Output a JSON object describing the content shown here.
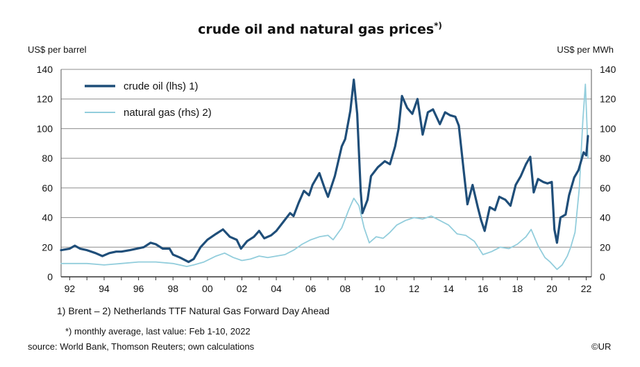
{
  "chart_data": {
    "type": "line",
    "title": "crude oil and natural gas prices",
    "title_superscript": "*)",
    "ylabel_left": "US$ per barrel",
    "ylabel_right": "US$ per MWh",
    "ylim_left": [
      0,
      140
    ],
    "ylim_right": [
      0,
      140
    ],
    "yticks_left": [
      "0",
      "20",
      "40",
      "60",
      "80",
      "100",
      "120",
      "140"
    ],
    "yticks_right": [
      "0",
      "20",
      "40",
      "60",
      "80",
      "100",
      "120",
      "140"
    ],
    "xlim": [
      1991.5,
      2022.3
    ],
    "xticks": [
      {
        "x": 1992,
        "label": "92"
      },
      {
        "x": 1994,
        "label": "94"
      },
      {
        "x": 1996,
        "label": "96"
      },
      {
        "x": 1998,
        "label": "98"
      },
      {
        "x": 2000,
        "label": "00"
      },
      {
        "x": 2002,
        "label": "02"
      },
      {
        "x": 2004,
        "label": "04"
      },
      {
        "x": 2006,
        "label": "06"
      },
      {
        "x": 2008,
        "label": "08"
      },
      {
        "x": 2010,
        "label": "10"
      },
      {
        "x": 2012,
        "label": "12"
      },
      {
        "x": 2014,
        "label": "14"
      },
      {
        "x": 2016,
        "label": "16"
      },
      {
        "x": 2018,
        "label": "18"
      },
      {
        "x": 2020,
        "label": "20"
      },
      {
        "x": 2022,
        "label": "22"
      }
    ],
    "grid": "horizontal",
    "legend_position": "top-left",
    "series": [
      {
        "name": "crude oil (lhs) 1)",
        "axis": "left",
        "color": "#1f4e79",
        "points": [
          [
            1991.5,
            18
          ],
          [
            1992.0,
            19
          ],
          [
            1992.3,
            21
          ],
          [
            1992.6,
            19
          ],
          [
            1993.0,
            18
          ],
          [
            1993.5,
            16
          ],
          [
            1993.9,
            14
          ],
          [
            1994.3,
            16
          ],
          [
            1994.7,
            17
          ],
          [
            1995.0,
            17
          ],
          [
            1995.5,
            18
          ],
          [
            1995.9,
            19
          ],
          [
            1996.3,
            20
          ],
          [
            1996.7,
            23
          ],
          [
            1997.0,
            22
          ],
          [
            1997.4,
            19
          ],
          [
            1997.8,
            19
          ],
          [
            1998.0,
            15
          ],
          [
            1998.4,
            13
          ],
          [
            1998.9,
            10
          ],
          [
            1999.2,
            12
          ],
          [
            1999.6,
            20
          ],
          [
            2000.0,
            25
          ],
          [
            2000.5,
            29
          ],
          [
            2000.9,
            32
          ],
          [
            2001.3,
            27
          ],
          [
            2001.7,
            25
          ],
          [
            2001.95,
            19
          ],
          [
            2002.3,
            24
          ],
          [
            2002.7,
            27
          ],
          [
            2003.0,
            31
          ],
          [
            2003.3,
            26
          ],
          [
            2003.7,
            28
          ],
          [
            2004.0,
            31
          ],
          [
            2004.4,
            37
          ],
          [
            2004.8,
            43
          ],
          [
            2005.0,
            41
          ],
          [
            2005.3,
            50
          ],
          [
            2005.6,
            58
          ],
          [
            2005.9,
            55
          ],
          [
            2006.1,
            62
          ],
          [
            2006.5,
            70
          ],
          [
            2006.8,
            60
          ],
          [
            2007.0,
            54
          ],
          [
            2007.4,
            68
          ],
          [
            2007.8,
            88
          ],
          [
            2008.0,
            93
          ],
          [
            2008.3,
            112
          ],
          [
            2008.5,
            133
          ],
          [
            2008.7,
            110
          ],
          [
            2008.9,
            58
          ],
          [
            2009.0,
            43
          ],
          [
            2009.3,
            52
          ],
          [
            2009.5,
            68
          ],
          [
            2009.9,
            74
          ],
          [
            2010.3,
            78
          ],
          [
            2010.6,
            76
          ],
          [
            2010.9,
            88
          ],
          [
            2011.1,
            100
          ],
          [
            2011.3,
            122
          ],
          [
            2011.6,
            114
          ],
          [
            2011.9,
            110
          ],
          [
            2012.2,
            120
          ],
          [
            2012.5,
            96
          ],
          [
            2012.8,
            111
          ],
          [
            2013.1,
            113
          ],
          [
            2013.5,
            103
          ],
          [
            2013.8,
            111
          ],
          [
            2014.1,
            109
          ],
          [
            2014.4,
            108
          ],
          [
            2014.6,
            102
          ],
          [
            2014.9,
            70
          ],
          [
            2015.1,
            49
          ],
          [
            2015.4,
            62
          ],
          [
            2015.7,
            47
          ],
          [
            2015.9,
            38
          ],
          [
            2016.1,
            31
          ],
          [
            2016.4,
            47
          ],
          [
            2016.7,
            45
          ],
          [
            2016.95,
            54
          ],
          [
            2017.3,
            52
          ],
          [
            2017.6,
            48
          ],
          [
            2017.9,
            62
          ],
          [
            2018.2,
            68
          ],
          [
            2018.5,
            76
          ],
          [
            2018.75,
            81
          ],
          [
            2018.95,
            57
          ],
          [
            2019.2,
            66
          ],
          [
            2019.5,
            64
          ],
          [
            2019.75,
            63
          ],
          [
            2020.0,
            64
          ],
          [
            2020.15,
            32
          ],
          [
            2020.3,
            23
          ],
          [
            2020.5,
            40
          ],
          [
            2020.8,
            42
          ],
          [
            2021.0,
            55
          ],
          [
            2021.3,
            67
          ],
          [
            2021.55,
            72
          ],
          [
            2021.85,
            84
          ],
          [
            2022.0,
            82
          ],
          [
            2022.1,
            95
          ]
        ]
      },
      {
        "name": "natural gas (rhs) 2)",
        "axis": "right",
        "color": "#92cddc",
        "points": [
          [
            1991.5,
            9
          ],
          [
            1993.0,
            9
          ],
          [
            1994.0,
            8
          ],
          [
            1995.0,
            9
          ],
          [
            1996.0,
            10
          ],
          [
            1997.0,
            10
          ],
          [
            1998.0,
            9
          ],
          [
            1998.8,
            7
          ],
          [
            1999.2,
            8
          ],
          [
            1999.8,
            10
          ],
          [
            2000.5,
            14
          ],
          [
            2001.0,
            16
          ],
          [
            2001.5,
            13
          ],
          [
            2002.0,
            11
          ],
          [
            2002.5,
            12
          ],
          [
            2003.0,
            14
          ],
          [
            2003.5,
            13
          ],
          [
            2004.0,
            14
          ],
          [
            2004.5,
            15
          ],
          [
            2005.0,
            18
          ],
          [
            2005.5,
            22
          ],
          [
            2006.0,
            25
          ],
          [
            2006.5,
            27
          ],
          [
            2007.0,
            28
          ],
          [
            2007.3,
            25
          ],
          [
            2007.8,
            33
          ],
          [
            2008.2,
            45
          ],
          [
            2008.5,
            53
          ],
          [
            2008.8,
            48
          ],
          [
            2009.1,
            33
          ],
          [
            2009.4,
            23
          ],
          [
            2009.8,
            27
          ],
          [
            2010.2,
            26
          ],
          [
            2010.6,
            30
          ],
          [
            2011.0,
            35
          ],
          [
            2011.5,
            38
          ],
          [
            2012.0,
            40
          ],
          [
            2012.5,
            39
          ],
          [
            2013.0,
            41
          ],
          [
            2013.5,
            38
          ],
          [
            2014.0,
            35
          ],
          [
            2014.5,
            29
          ],
          [
            2015.0,
            28
          ],
          [
            2015.5,
            24
          ],
          [
            2016.0,
            15
          ],
          [
            2016.5,
            17
          ],
          [
            2017.0,
            20
          ],
          [
            2017.5,
            19
          ],
          [
            2018.0,
            22
          ],
          [
            2018.5,
            27
          ],
          [
            2018.8,
            32
          ],
          [
            2019.2,
            21
          ],
          [
            2019.6,
            13
          ],
          [
            2019.9,
            10
          ],
          [
            2020.3,
            5
          ],
          [
            2020.6,
            8
          ],
          [
            2020.9,
            14
          ],
          [
            2021.1,
            20
          ],
          [
            2021.35,
            30
          ],
          [
            2021.6,
            60
          ],
          [
            2021.8,
            105
          ],
          [
            2021.95,
            130
          ],
          [
            2022.05,
            100
          ],
          [
            2022.1,
            80
          ]
        ]
      }
    ]
  },
  "footnotes": {
    "sources_legend": "1) Brent  –  2) Netherlands TTF Natural Gas Forward Day Ahead",
    "monthly_note": "*) monthly average, last value: Feb 1-10, 2022",
    "source": "source: World Bank, Thomson Reuters; own calculations",
    "copyright": "©UR"
  }
}
